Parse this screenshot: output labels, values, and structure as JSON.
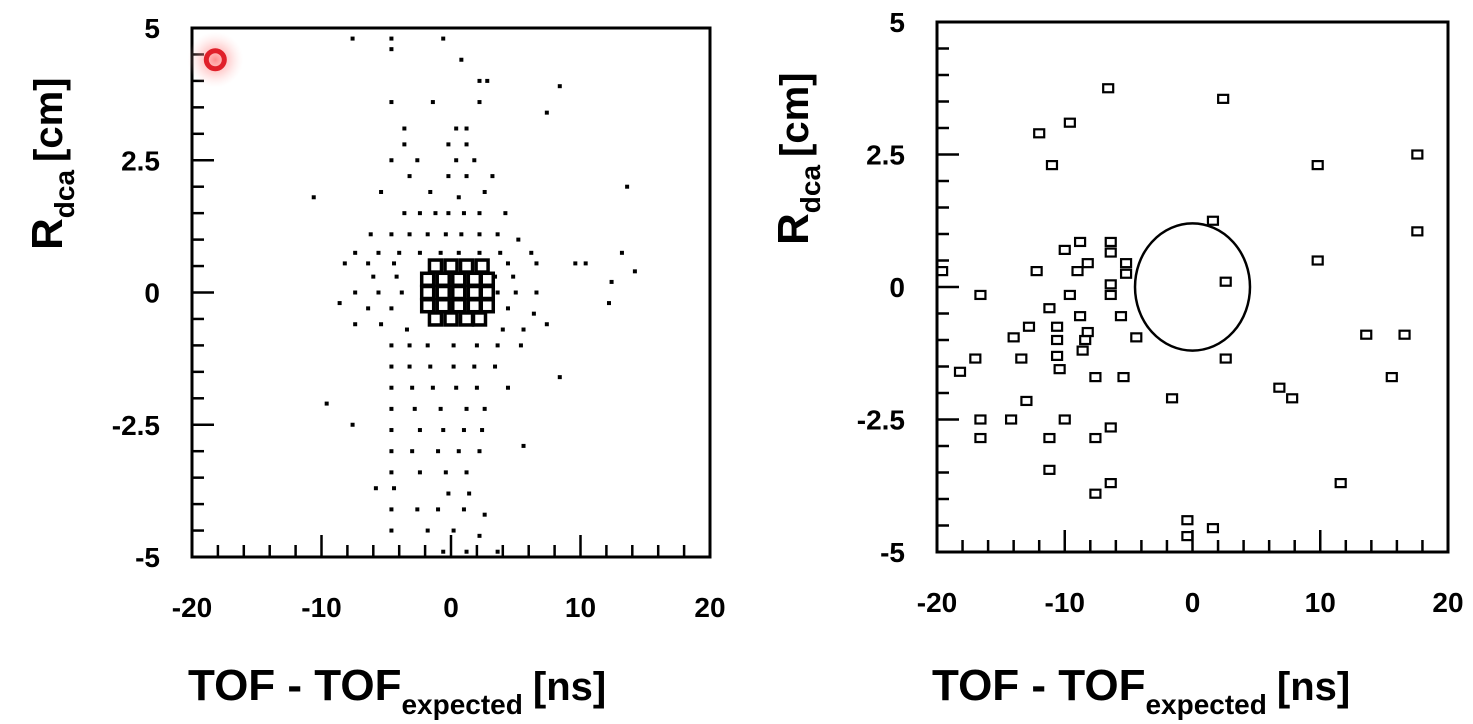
{
  "cursor": {
    "color": "#e0202a"
  },
  "chart_data": [
    {
      "type": "scatter",
      "title": "",
      "xlim": [
        -20,
        20
      ],
      "ylim": [
        -5,
        5
      ],
      "xticks": [
        "-20",
        "-10",
        "0",
        "10",
        "20"
      ],
      "yticks": [
        "5",
        "2.5",
        "0",
        "-2.5",
        "-5"
      ],
      "xlabel": {
        "main": "TOF - TOF",
        "sub": "expected",
        "unit": "[ns]"
      },
      "ylabel": {
        "main": "R",
        "sub": "dca",
        "unit": "[cm]"
      },
      "grid": false,
      "points": [
        [
          -7.6,
          4.8
        ],
        [
          -4.6,
          4.8
        ],
        [
          -0.6,
          4.8
        ],
        [
          -4.6,
          4.6
        ],
        [
          0.8,
          4.4
        ],
        [
          2.2,
          4.0
        ],
        [
          2.8,
          4.0
        ],
        [
          8.4,
          3.9
        ],
        [
          -4.6,
          3.6
        ],
        [
          -1.4,
          3.6
        ],
        [
          2.2,
          3.6
        ],
        [
          7.4,
          3.4
        ],
        [
          -3.6,
          3.1
        ],
        [
          0.4,
          3.1
        ],
        [
          1.2,
          3.1
        ],
        [
          -3.6,
          2.8
        ],
        [
          -0.2,
          2.8
        ],
        [
          1.2,
          2.8
        ],
        [
          -4.6,
          2.5
        ],
        [
          -2.6,
          2.5
        ],
        [
          0.4,
          2.5
        ],
        [
          1.8,
          2.5
        ],
        [
          -3.2,
          2.2
        ],
        [
          -0.2,
          2.2
        ],
        [
          1.2,
          2.2
        ],
        [
          3.2,
          2.2
        ],
        [
          13.6,
          2.0
        ],
        [
          -10.6,
          1.8
        ],
        [
          -5.4,
          1.9
        ],
        [
          -1.6,
          1.9
        ],
        [
          0.6,
          1.8
        ],
        [
          2.6,
          1.9
        ],
        [
          -3.6,
          1.5
        ],
        [
          -2.4,
          1.5
        ],
        [
          -1.2,
          1.5
        ],
        [
          -0.2,
          1.5
        ],
        [
          1.0,
          1.5
        ],
        [
          2.2,
          1.5
        ],
        [
          4.2,
          1.5
        ],
        [
          -6.2,
          1.1
        ],
        [
          -4.6,
          1.1
        ],
        [
          -3.2,
          1.1
        ],
        [
          -1.8,
          1.1
        ],
        [
          -0.4,
          1.1
        ],
        [
          0.8,
          1.1
        ],
        [
          2.2,
          1.1
        ],
        [
          3.6,
          1.1
        ],
        [
          5.2,
          1.0
        ],
        [
          -7.4,
          0.75
        ],
        [
          -5.6,
          0.75
        ],
        [
          -4.0,
          0.75
        ],
        [
          -2.4,
          0.75
        ],
        [
          -0.8,
          0.75
        ],
        [
          0.6,
          0.75
        ],
        [
          2.2,
          0.75
        ],
        [
          3.8,
          0.75
        ],
        [
          6.2,
          0.75
        ],
        [
          13.2,
          0.75
        ],
        [
          -8.2,
          0.55
        ],
        [
          -6.4,
          0.55
        ],
        [
          -4.4,
          0.55
        ],
        [
          4.4,
          0.55
        ],
        [
          6.6,
          0.55
        ],
        [
          9.6,
          0.55
        ],
        [
          10.4,
          0.55
        ],
        [
          14.2,
          0.4
        ],
        [
          -6.0,
          0.3
        ],
        [
          -4.2,
          0.3
        ],
        [
          3.4,
          0.3
        ],
        [
          4.8,
          0.3
        ],
        [
          -7.4,
          0.0
        ],
        [
          -5.6,
          0.0
        ],
        [
          -3.8,
          0.0
        ],
        [
          3.6,
          0.0
        ],
        [
          5.0,
          0.0
        ],
        [
          6.6,
          0.0
        ],
        [
          12.4,
          0.2
        ],
        [
          -8.6,
          -0.2
        ],
        [
          -6.4,
          -0.3
        ],
        [
          -4.6,
          -0.3
        ],
        [
          4.4,
          -0.3
        ],
        [
          6.4,
          -0.4
        ],
        [
          12.2,
          -0.2
        ],
        [
          -7.4,
          -0.6
        ],
        [
          -5.4,
          -0.6
        ],
        [
          -3.4,
          -0.7
        ],
        [
          4.0,
          -0.7
        ],
        [
          5.6,
          -0.7
        ],
        [
          7.4,
          -0.6
        ],
        [
          -4.6,
          -1.0
        ],
        [
          -3.2,
          -1.0
        ],
        [
          -1.8,
          -1.0
        ],
        [
          0.2,
          -1.0
        ],
        [
          2.0,
          -1.0
        ],
        [
          3.6,
          -1.0
        ],
        [
          5.4,
          -1.0
        ],
        [
          -4.6,
          -1.4
        ],
        [
          -3.2,
          -1.4
        ],
        [
          -1.6,
          -1.4
        ],
        [
          0.2,
          -1.4
        ],
        [
          1.8,
          -1.4
        ],
        [
          3.4,
          -1.4
        ],
        [
          -4.6,
          -1.8
        ],
        [
          -3.0,
          -1.8
        ],
        [
          -1.4,
          -1.8
        ],
        [
          0.4,
          -1.8
        ],
        [
          2.0,
          -1.8
        ],
        [
          4.4,
          -1.8
        ],
        [
          8.4,
          -1.6
        ],
        [
          -9.6,
          -2.1
        ],
        [
          -4.6,
          -2.2
        ],
        [
          -2.8,
          -2.2
        ],
        [
          -0.8,
          -2.2
        ],
        [
          1.2,
          -2.2
        ],
        [
          2.6,
          -2.2
        ],
        [
          -7.6,
          -2.5
        ],
        [
          -4.6,
          -2.6
        ],
        [
          -2.4,
          -2.6
        ],
        [
          -0.6,
          -2.6
        ],
        [
          1.0,
          -2.6
        ],
        [
          2.4,
          -2.6
        ],
        [
          -4.6,
          -3.0
        ],
        [
          -3.0,
          -3.0
        ],
        [
          -1.0,
          -3.0
        ],
        [
          0.6,
          -3.0
        ],
        [
          2.2,
          -3.0
        ],
        [
          5.6,
          -2.9
        ],
        [
          -4.6,
          -3.4
        ],
        [
          -2.4,
          -3.4
        ],
        [
          -0.4,
          -3.4
        ],
        [
          1.2,
          -3.4
        ],
        [
          -5.8,
          -3.7
        ],
        [
          -4.4,
          -3.7
        ],
        [
          -0.2,
          -3.8
        ],
        [
          1.4,
          -3.8
        ],
        [
          -4.6,
          -4.1
        ],
        [
          -2.6,
          -4.1
        ],
        [
          -1.0,
          -4.1
        ],
        [
          1.0,
          -4.1
        ],
        [
          2.6,
          -4.2
        ],
        [
          -4.6,
          -4.5
        ],
        [
          -1.8,
          -4.5
        ],
        [
          0.2,
          -4.5
        ],
        [
          2.2,
          -4.6
        ],
        [
          -0.6,
          -4.9
        ],
        [
          1.2,
          -4.9
        ],
        [
          3.6,
          -4.9
        ]
      ],
      "cluster": [
        [
          -1.2,
          0.5
        ],
        [
          0.0,
          0.5
        ],
        [
          1.2,
          0.5
        ],
        [
          2.4,
          0.5
        ],
        [
          -1.8,
          0.25
        ],
        [
          -0.6,
          0.25
        ],
        [
          0.6,
          0.25
        ],
        [
          1.8,
          0.25
        ],
        [
          2.8,
          0.25
        ],
        [
          -1.8,
          0.0
        ],
        [
          -0.6,
          0.0
        ],
        [
          0.6,
          0.0
        ],
        [
          1.8,
          0.0
        ],
        [
          2.8,
          0.0
        ],
        [
          -1.8,
          -0.25
        ],
        [
          -0.6,
          -0.25
        ],
        [
          0.6,
          -0.25
        ],
        [
          1.8,
          -0.25
        ],
        [
          2.8,
          -0.25
        ],
        [
          -1.2,
          -0.5
        ],
        [
          0.0,
          -0.5
        ],
        [
          1.2,
          -0.5
        ],
        [
          2.2,
          -0.5
        ]
      ],
      "cursor_point": [
        -18.2,
        4.4
      ]
    },
    {
      "type": "scatter",
      "title": "",
      "xlim": [
        -20,
        20
      ],
      "ylim": [
        -5,
        5
      ],
      "xticks": [
        "-20",
        "-10",
        "0",
        "10",
        "20"
      ],
      "yticks": [
        "5",
        "2.5",
        "0",
        "-2.5",
        "-5"
      ],
      "xlabel": {
        "main": "TOF - TOF",
        "sub": "expected",
        "unit": "[ns]"
      },
      "ylabel": {
        "main": "R",
        "sub": "dca",
        "unit": "[cm]"
      },
      "grid": false,
      "ellipse": {
        "cx": 0.0,
        "cy": 0.0,
        "rx": 4.5,
        "ry": 1.2
      },
      "points": [
        [
          -6.6,
          3.75
        ],
        [
          2.4,
          3.55
        ],
        [
          -9.6,
          3.1
        ],
        [
          -12.0,
          2.9
        ],
        [
          -11.0,
          2.3
        ],
        [
          17.6,
          2.5
        ],
        [
          9.8,
          2.3
        ],
        [
          17.6,
          1.05
        ],
        [
          1.6,
          1.25
        ],
        [
          -8.8,
          0.85
        ],
        [
          -6.4,
          0.85
        ],
        [
          -6.4,
          0.65
        ],
        [
          -10.0,
          0.7
        ],
        [
          -8.2,
          0.45
        ],
        [
          -5.2,
          0.45
        ],
        [
          -5.2,
          0.25
        ],
        [
          -19.6,
          0.3
        ],
        [
          -12.2,
          0.3
        ],
        [
          -9.0,
          0.3
        ],
        [
          9.8,
          0.5
        ],
        [
          2.6,
          0.1
        ],
        [
          -6.4,
          0.05
        ],
        [
          -16.6,
          -0.15
        ],
        [
          -9.6,
          -0.15
        ],
        [
          -6.4,
          -0.15
        ],
        [
          -11.2,
          -0.4
        ],
        [
          -8.8,
          -0.55
        ],
        [
          -5.6,
          -0.55
        ],
        [
          -12.8,
          -0.75
        ],
        [
          -10.6,
          -0.75
        ],
        [
          -8.2,
          -0.85
        ],
        [
          -14.0,
          -0.95
        ],
        [
          -10.6,
          -1.0
        ],
        [
          -8.4,
          -1.0
        ],
        [
          -4.4,
          -0.95
        ],
        [
          13.6,
          -0.9
        ],
        [
          16.6,
          -0.9
        ],
        [
          -8.6,
          -1.2
        ],
        [
          -10.6,
          -1.3
        ],
        [
          -13.4,
          -1.35
        ],
        [
          -17.0,
          -1.35
        ],
        [
          -10.4,
          -1.55
        ],
        [
          -18.2,
          -1.6
        ],
        [
          2.6,
          -1.35
        ],
        [
          15.6,
          -1.7
        ],
        [
          -7.6,
          -1.7
        ],
        [
          -5.4,
          -1.7
        ],
        [
          6.8,
          -1.9
        ],
        [
          7.8,
          -2.1
        ],
        [
          -1.6,
          -2.1
        ],
        [
          -13.0,
          -2.15
        ],
        [
          -16.6,
          -2.5
        ],
        [
          -14.2,
          -2.5
        ],
        [
          -10.0,
          -2.5
        ],
        [
          -6.4,
          -2.65
        ],
        [
          -16.6,
          -2.85
        ],
        [
          -11.2,
          -2.85
        ],
        [
          -7.6,
          -2.85
        ],
        [
          -11.2,
          -3.45
        ],
        [
          -6.4,
          -3.7
        ],
        [
          -7.6,
          -3.9
        ],
        [
          11.6,
          -3.7
        ],
        [
          -0.4,
          -4.4
        ],
        [
          1.6,
          -4.55
        ],
        [
          -0.4,
          -4.7
        ]
      ]
    }
  ]
}
